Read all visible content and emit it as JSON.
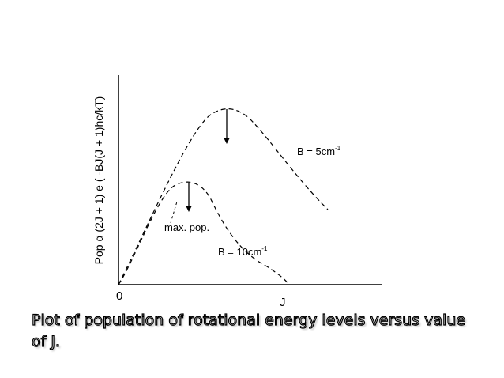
{
  "axis": {
    "y_label": "Pop α (2J + 1) e ( -BJ(J + 1)hc/kT)",
    "origin_label": "0",
    "x_label": "J"
  },
  "curves": {
    "upper": {
      "label_prefix": "B = 5cm",
      "label_superscript": "-1"
    },
    "lower": {
      "label_prefix": "B = 10cm",
      "label_superscript": "-1"
    }
  },
  "annotation": {
    "max_pop": "max. pop."
  },
  "caption": "Plot of population of rotational energy levels versus value of J.",
  "colors": {
    "ink": "#000000",
    "background": "#ffffff"
  }
}
